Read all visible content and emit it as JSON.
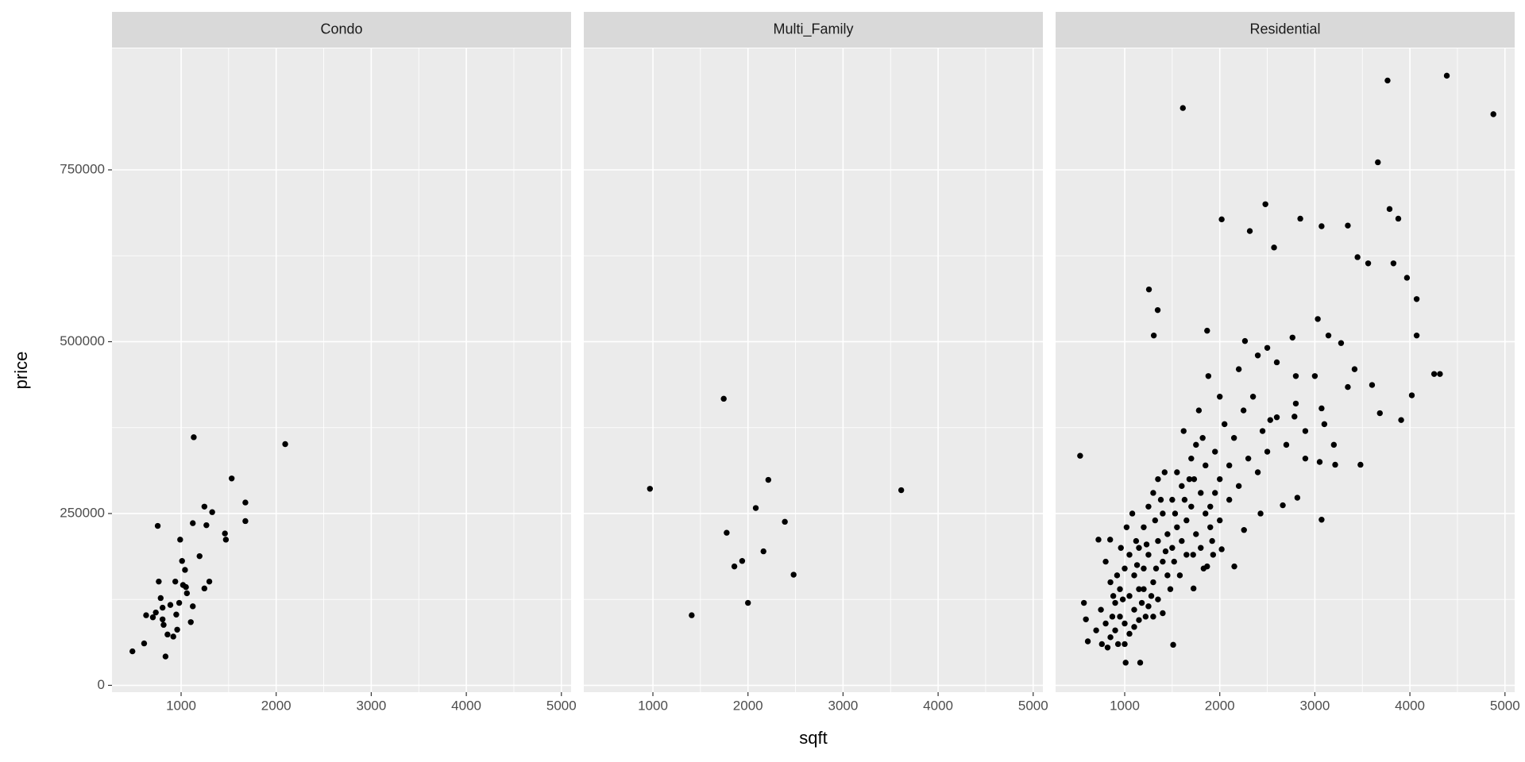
{
  "chart_data": [
    {
      "type": "scatter",
      "title": "Condo",
      "ylabel": "price",
      "color": "#000000",
      "grid": true,
      "xlim": [
        273,
        5102
      ],
      "ylim": [
        -9900,
        926700
      ],
      "xticks": [
        1000,
        2000,
        3000,
        4000,
        5000
      ],
      "yticks": [
        0,
        250000,
        500000,
        750000
      ],
      "x": [
        488,
        611,
        632,
        734,
        703,
        754,
        765,
        785,
        805,
        805,
        816,
        836,
        857,
        887,
        918,
        939,
        949,
        959,
        980,
        990,
        1010,
        1020,
        1041,
        1051,
        1061,
        1102,
        1123,
        1123,
        1133,
        1194,
        1245,
        1245,
        1266,
        1297,
        1327,
        1461,
        1471,
        1532,
        1676,
        1676,
        2095
      ],
      "values": [
        49500,
        61000,
        102000,
        106000,
        99000,
        232000,
        151000,
        127000,
        113000,
        96000,
        88000,
        42000,
        74000,
        117000,
        71000,
        151000,
        103000,
        81000,
        120000,
        212000,
        181000,
        146000,
        168000,
        143000,
        134000,
        92000,
        115000,
        236000,
        361000,
        188000,
        141000,
        260000,
        233000,
        151000,
        252000,
        221000,
        212000,
        301000,
        266000,
        239000,
        351000
      ]
    },
    {
      "type": "scatter",
      "title": "Multi_Family",
      "xlabel": "sqft",
      "color": "#000000",
      "grid": true,
      "xlim": [
        273,
        5102
      ],
      "ylim": [
        -9900,
        926700
      ],
      "xticks": [
        1000,
        2000,
        3000,
        4000,
        5000
      ],
      "yticks": [
        0,
        250000,
        500000,
        750000
      ],
      "x": [
        969,
        1408,
        1745,
        1776,
        1857,
        1939,
        2000,
        2082,
        2163,
        2214,
        2388,
        2480,
        3612
      ],
      "values": [
        286000,
        102000,
        417000,
        222000,
        173000,
        181000,
        120000,
        258000,
        195000,
        299000,
        238000,
        161000,
        284000
      ]
    },
    {
      "type": "scatter",
      "title": "Residential",
      "color": "#000000",
      "grid": true,
      "xlim": [
        273,
        5102
      ],
      "ylim": [
        -9900,
        926700
      ],
      "xticks": [
        1000,
        2000,
        3000,
        4000,
        5000
      ],
      "yticks": [
        0,
        250000,
        500000,
        750000
      ],
      "x": [
        531,
        1612,
        3765,
        4388,
        4878,
        3663,
        3786,
        3878,
        2480,
        2020,
        2316,
        2571,
        2847,
        3071,
        3347,
        3449,
        3561,
        3827,
        3969,
        4071,
        4071,
        4255,
        4316,
        1255,
        1347,
        1306,
        1867,
        2265,
        2500,
        2765,
        3031,
        3143,
        3276,
        3418,
        3602,
        3684,
        3908,
        4020,
        3347,
        3071,
        2786,
        2531,
        3051,
        3214,
        3480,
        3071,
        2816,
        2663,
        2429,
        2255,
        2020,
        1867,
        2153,
        1724,
        1510,
        1010,
        1163,
        612,
        592,
        571,
        724,
        847,
        800,
        850,
        900,
        950,
        1000,
        1050,
        1100,
        1150,
        1200,
        1250,
        1300,
        1350,
        1400,
        1450,
        1500,
        1550,
        1600,
        1650,
        1700,
        1750,
        1800,
        1850,
        1900,
        1950,
        2000,
        2050,
        2100,
        2150,
        2200,
        2250,
        2300,
        2350,
        2400,
        2450,
        2500,
        2600,
        2700,
        2800,
        2900,
        3000,
        900,
        950,
        1000,
        1050,
        1100,
        1150,
        1200,
        1250,
        1300,
        1350,
        1400,
        1450,
        1500,
        1550,
        1600,
        1650,
        1700,
        1750,
        1800,
        1850,
        1900,
        1950,
        2000,
        2100,
        750,
        800,
        850,
        880,
        920,
        960,
        1020,
        1080,
        1120,
        1180,
        1220,
        1280,
        1320,
        1380,
        1420,
        1480,
        1520,
        1580,
        1620,
        1680,
        1720,
        1780,
        1820,
        1880,
        1920,
        2000,
        2200,
        2400,
        2600,
        2800,
        2900,
        3100,
        3200,
        1000,
        1050,
        1100,
        1150,
        1200,
        1250,
        1300,
        1350,
        1400,
        700,
        760,
        820,
        870,
        930,
        980,
        1130,
        1230,
        1330,
        1430,
        1530,
        1630,
        1730,
        1830,
        1930
      ],
      "values": [
        334000,
        840000,
        880000,
        887000,
        831000,
        761000,
        693000,
        679000,
        700000,
        678000,
        661000,
        637000,
        679000,
        668000,
        669000,
        623000,
        614000,
        614000,
        593000,
        562000,
        509000,
        453000,
        453000,
        576000,
        546000,
        509000,
        516000,
        501000,
        491000,
        506000,
        533000,
        509000,
        498000,
        460000,
        437000,
        396000,
        386000,
        422000,
        434000,
        403000,
        391000,
        386000,
        325000,
        321000,
        321000,
        241000,
        273000,
        262000,
        250000,
        226000,
        198000,
        173000,
        173000,
        141000,
        59000,
        33000,
        33000,
        64000,
        96000,
        120000,
        212000,
        212000,
        180000,
        150000,
        120000,
        100000,
        90000,
        130000,
        160000,
        200000,
        230000,
        260000,
        280000,
        300000,
        250000,
        220000,
        270000,
        310000,
        290000,
        240000,
        330000,
        350000,
        280000,
        320000,
        260000,
        340000,
        300000,
        380000,
        320000,
        360000,
        290000,
        400000,
        330000,
        420000,
        310000,
        370000,
        340000,
        390000,
        350000,
        410000,
        370000,
        450000,
        80000,
        140000,
        170000,
        190000,
        110000,
        140000,
        170000,
        190000,
        150000,
        210000,
        180000,
        160000,
        200000,
        230000,
        210000,
        190000,
        260000,
        220000,
        200000,
        250000,
        230000,
        280000,
        240000,
        270000,
        110000,
        90000,
        70000,
        130000,
        160000,
        200000,
        230000,
        250000,
        210000,
        120000,
        100000,
        130000,
        240000,
        270000,
        310000,
        140000,
        180000,
        160000,
        370000,
        300000,
        190000,
        400000,
        360000,
        450000,
        210000,
        420000,
        460000,
        480000,
        470000,
        450000,
        330000,
        380000,
        350000,
        60000,
        75000,
        85000,
        95000,
        140000,
        115000,
        100000,
        125000,
        105000,
        80000,
        60000,
        55000,
        100000,
        60000,
        125000,
        175000,
        205000,
        170000,
        195000,
        250000,
        270000,
        300000,
        170000,
        190000
      ]
    }
  ]
}
